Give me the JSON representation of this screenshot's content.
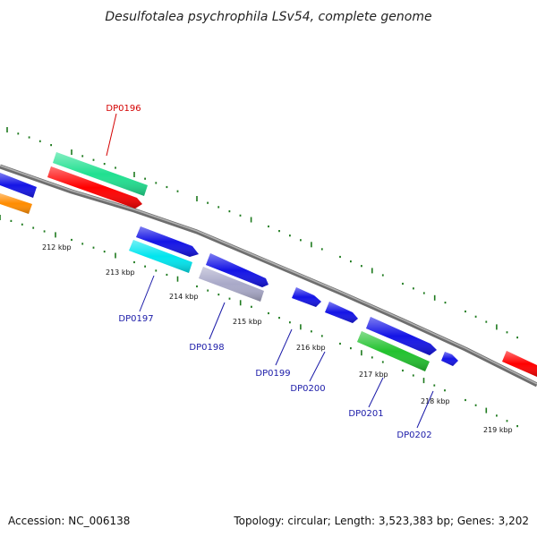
{
  "title": "Desulfotalea psychrophila LSv54, complete genome",
  "footer": {
    "accession": "Accession: NC_006138",
    "summary": "Topology: circular; Length: 3,523,383 bp; Genes: 3,202"
  },
  "colors": {
    "backbone": "#8c8c8c",
    "ticks": "#1e7a1e",
    "label_red": "#d40000",
    "label_blue": "#1a1aa8"
  },
  "scale_labels": [
    {
      "text": "212 kbp"
    },
    {
      "text": "213 kbp"
    },
    {
      "text": "214 kbp"
    },
    {
      "text": "215 kbp"
    },
    {
      "text": "216 kbp"
    },
    {
      "text": "217 kbp"
    },
    {
      "text": "218 kbp"
    },
    {
      "text": "219 kbp"
    }
  ],
  "gene_labels": [
    {
      "text": "DP0196",
      "color": "#d40000"
    },
    {
      "text": "DP0197",
      "color": "#1a1aa8"
    },
    {
      "text": "DP0198",
      "color": "#1a1aa8"
    },
    {
      "text": "DP0199",
      "color": "#1a1aa8"
    },
    {
      "text": "DP0200",
      "color": "#1a1aa8"
    },
    {
      "text": "DP0201",
      "color": "#1a1aa8"
    },
    {
      "text": "DP0202",
      "color": "#1a1aa8"
    }
  ],
  "features": [
    {
      "color": "#20e090"
    },
    {
      "color": "#ff0000"
    },
    {
      "color": "#1414e6"
    },
    {
      "color": "#ff8c00"
    },
    {
      "color": "#1414e6"
    },
    {
      "color": "#00e5ee"
    },
    {
      "color": "#1414e6"
    },
    {
      "color": "#a9a9c8"
    },
    {
      "color": "#1414e6"
    },
    {
      "color": "#1414e6"
    },
    {
      "color": "#1414e6"
    },
    {
      "color": "#22c22e"
    },
    {
      "color": "#1414e6"
    },
    {
      "color": "#ff0000"
    }
  ]
}
